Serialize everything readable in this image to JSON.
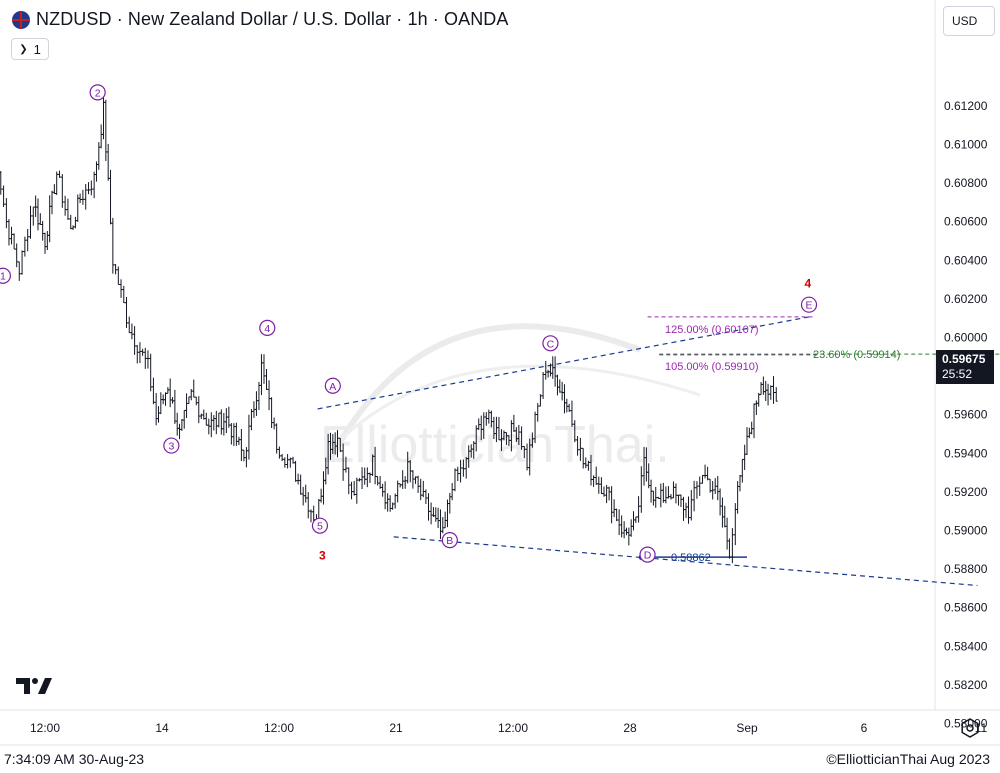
{
  "header": {
    "title": "NZDUSD · New Zealand Dollar / U.S. Dollar · 1h · OANDA",
    "interval": "1",
    "currency": "USD"
  },
  "last_price": {
    "price": "0.59675",
    "countdown": "25:52"
  },
  "watermark": "ElliotticianThai.",
  "footer": {
    "timestamp": "7:34:09 AM 30-Aug-23",
    "copyright": "©ElliotticianThai Aug 2023"
  },
  "icons": {
    "flag": "nz-flag-icon",
    "chevron": "chevron-icon",
    "logo": "tradingview-logo-icon",
    "settings": "settings-gear-icon"
  },
  "chart_data": {
    "type": "candlestick",
    "y_ticks": [
      "0.61200",
      "0.61000",
      "0.60800",
      "0.60600",
      "0.60400",
      "0.60200",
      "0.60000",
      "0.59800",
      "0.59600",
      "0.59400",
      "0.59200",
      "0.59000",
      "0.58800",
      "0.58600",
      "0.58400",
      "0.58200",
      "0.58000"
    ],
    "ylim": [
      0.58,
      0.612
    ],
    "x_ticks": [
      {
        "label": "12:00",
        "t": 0
      },
      {
        "label": "14",
        "t": 1
      },
      {
        "label": "12:00",
        "t": 2
      },
      {
        "label": "21",
        "t": 3
      },
      {
        "label": "12:00",
        "t": 4
      },
      {
        "label": "28",
        "t": 5
      },
      {
        "label": "Sep",
        "t": 6
      },
      {
        "label": "6",
        "t": 7
      },
      {
        "label": "11",
        "t": 8
      }
    ],
    "price_path": [
      [
        -0.45,
        0.6108
      ],
      [
        -0.33,
        0.606
      ],
      [
        -0.22,
        0.6035
      ],
      [
        -0.1,
        0.607
      ],
      [
        0.0,
        0.605
      ],
      [
        0.1,
        0.6085
      ],
      [
        0.22,
        0.6055
      ],
      [
        0.3,
        0.6072
      ],
      [
        0.42,
        0.6082
      ],
      [
        0.5,
        0.6118
      ],
      [
        0.58,
        0.604
      ],
      [
        0.72,
        0.6005
      ],
      [
        0.88,
        0.5985
      ],
      [
        0.95,
        0.5958
      ],
      [
        1.05,
        0.5975
      ],
      [
        1.15,
        0.595
      ],
      [
        1.25,
        0.597
      ],
      [
        1.4,
        0.5955
      ],
      [
        1.55,
        0.5958
      ],
      [
        1.7,
        0.5938
      ],
      [
        1.85,
        0.5985
      ],
      [
        1.98,
        0.5945
      ],
      [
        2.12,
        0.5932
      ],
      [
        2.25,
        0.5914
      ],
      [
        2.32,
        0.5905
      ],
      [
        2.42,
        0.5945
      ],
      [
        2.5,
        0.5948
      ],
      [
        2.62,
        0.5918
      ],
      [
        2.8,
        0.5935
      ],
      [
        2.95,
        0.5912
      ],
      [
        3.1,
        0.5932
      ],
      [
        3.3,
        0.5908
      ],
      [
        3.4,
        0.5897
      ],
      [
        3.48,
        0.5925
      ],
      [
        3.6,
        0.5935
      ],
      [
        3.75,
        0.596
      ],
      [
        3.88,
        0.595
      ],
      [
        4.05,
        0.5952
      ],
      [
        4.12,
        0.5935
      ],
      [
        4.28,
        0.5985
      ],
      [
        4.38,
        0.5978
      ],
      [
        4.48,
        0.5962
      ],
      [
        4.6,
        0.5935
      ],
      [
        4.8,
        0.592
      ],
      [
        4.95,
        0.5898
      ],
      [
        5.05,
        0.5903
      ],
      [
        5.12,
        0.5935
      ],
      [
        5.22,
        0.5915
      ],
      [
        5.35,
        0.592
      ],
      [
        5.5,
        0.591
      ],
      [
        5.62,
        0.593
      ],
      [
        5.75,
        0.5918
      ],
      [
        5.85,
        0.589
      ],
      [
        5.9,
        0.5912
      ],
      [
        5.98,
        0.594
      ],
      [
        6.06,
        0.5962
      ],
      [
        6.12,
        0.5978
      ],
      [
        6.18,
        0.5972
      ],
      [
        6.25,
        0.5967
      ]
    ],
    "wave_labels": [
      {
        "text": "1",
        "t": -0.36,
        "y": 0.6032,
        "circled": true,
        "color": "#7b1fa2"
      },
      {
        "text": "2",
        "t": 0.45,
        "y": 0.6127,
        "circled": true,
        "color": "#7b1fa2"
      },
      {
        "text": "3",
        "t": 1.08,
        "y": 0.5944,
        "circled": true,
        "color": "#7b1fa2"
      },
      {
        "text": "4",
        "t": 1.9,
        "y": 0.6005,
        "circled": true,
        "color": "#7b1fa2"
      },
      {
        "text": "5",
        "t": 2.35,
        "y": 0.59025,
        "circled": true,
        "color": "#7b1fa2"
      },
      {
        "text": "3",
        "t": 2.37,
        "y": 0.5887,
        "circled": false,
        "color": "#d50000"
      },
      {
        "text": "A",
        "t": 2.46,
        "y": 0.5975,
        "circled": true,
        "color": "#7b1fa2"
      },
      {
        "text": "B",
        "t": 3.46,
        "y": 0.5895,
        "circled": true,
        "color": "#7b1fa2"
      },
      {
        "text": "C",
        "t": 4.32,
        "y": 0.5997,
        "circled": true,
        "color": "#7b1fa2"
      },
      {
        "text": "D",
        "t": 5.15,
        "y": 0.58875,
        "circled": true,
        "color": "#7b1fa2"
      },
      {
        "text": "E",
        "t": 6.53,
        "y": 0.6017,
        "circled": true,
        "color": "#7b1fa2"
      },
      {
        "text": "4",
        "t": 6.52,
        "y": 0.6028,
        "circled": false,
        "color": "#d50000"
      }
    ],
    "trendlines": [
      {
        "from": [
          2.33,
          0.5963
        ],
        "to": [
          6.56,
          0.6011
        ],
        "color": "#1a3c8f",
        "dash": true
      },
      {
        "from": [
          2.98,
          0.58967
        ],
        "to": [
          7.97,
          0.58715
        ],
        "color": "#1a3c8f",
        "dash": true
      }
    ],
    "levels": [
      {
        "label": "125.00% (0.60107)",
        "y": 0.60107,
        "from_t": 5.15,
        "to_t": 6.56,
        "color": "#9c27b0"
      },
      {
        "label": "105.00% (0.59910)",
        "y": 0.5991,
        "from_t": 5.25,
        "to_t": 6.6,
        "color": "#9c27b0"
      },
      {
        "label": "23.60% (0.59914)",
        "y": 0.59914,
        "from_t": 5.25,
        "to_t": 8.35,
        "color": "#2e7d32"
      },
      {
        "label": "0.58862",
        "y": 0.58862,
        "from_t": 5.1,
        "to_t": 6.0,
        "color": "#1a3c8f"
      }
    ],
    "support_point": {
      "t": 5.1,
      "y": 0.58862
    }
  }
}
